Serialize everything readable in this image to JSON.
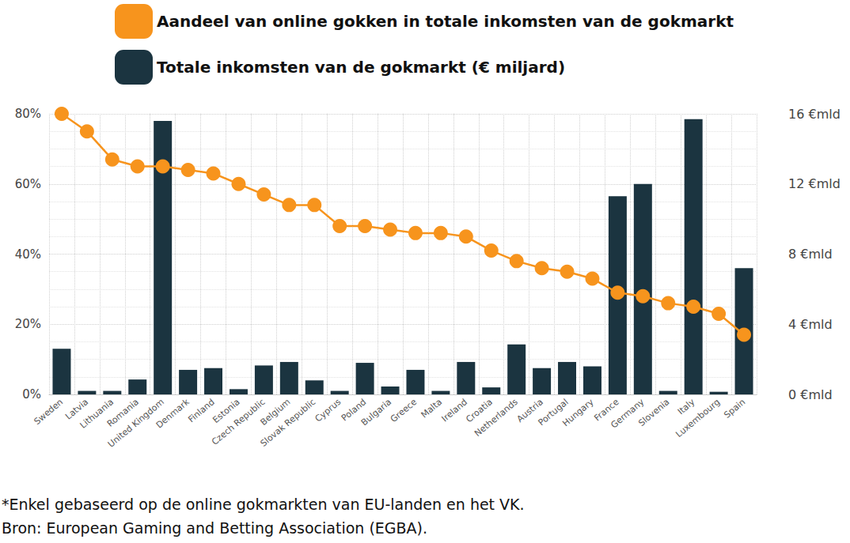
{
  "chart_data": {
    "type": "bar",
    "categories": [
      "Sweden",
      "Latvia",
      "Lithuania",
      "Romania",
      "United Kingdom",
      "Denmark",
      "Finland",
      "Estonia",
      "Czech Republic",
      "Belgium",
      "Slovak Republic",
      "Cyprus",
      "Poland",
      "Bulgaria",
      "Greece",
      "Malta",
      "Ireland",
      "Croatia",
      "Netherlands",
      "Austria",
      "Portugal",
      "Hungary",
      "France",
      "Germany",
      "Slovenia",
      "Italy",
      "Luxembourg",
      "Spain"
    ],
    "series": [
      {
        "name": "Aandeel van online gokken in totale inkomsten van de gokmarkt",
        "type": "line",
        "color": "#F7941D",
        "marker": "circle",
        "axis": "y",
        "values": [
          80,
          75,
          67,
          65,
          65,
          64,
          63,
          60,
          57,
          54,
          54,
          48,
          48,
          47,
          46,
          46,
          45,
          41,
          38,
          36,
          35,
          33,
          29,
          28,
          26,
          25,
          23,
          17
        ]
      },
      {
        "name": "Totale inkomsten van de gokmarkt (€ miljard)",
        "type": "bar",
        "color": "#1B3440",
        "axis": "y2",
        "values": [
          2.6,
          0.2,
          0.2,
          0.85,
          15.6,
          1.4,
          1.5,
          0.3,
          1.65,
          1.85,
          0.8,
          0.2,
          1.8,
          0.45,
          1.4,
          0.2,
          1.85,
          0.4,
          2.85,
          1.5,
          1.85,
          1.6,
          11.3,
          12.0,
          0.2,
          15.7,
          0.15,
          7.2
        ]
      }
    ],
    "ylim": [
      0,
      80
    ],
    "yticks": [
      {
        "value": 0,
        "label": "0%"
      },
      {
        "value": 20,
        "label": "20%"
      },
      {
        "value": 40,
        "label": "40%"
      },
      {
        "value": 60,
        "label": "60%"
      },
      {
        "value": 80,
        "label": "80%"
      }
    ],
    "y2lim": [
      0,
      16
    ],
    "y2ticks": [
      {
        "value": 0,
        "label": "0 €mld"
      },
      {
        "value": 4,
        "label": "4 €mld"
      },
      {
        "value": 8,
        "label": "8 €mld"
      },
      {
        "value": 12,
        "label": "12 €mld"
      },
      {
        "value": 16,
        "label": "16 €mld"
      }
    ],
    "grid": true,
    "legend": "top",
    "annotations": [
      "*Enkel gebaseerd op de online gokmarkten van EU-landen en het VK.",
      "Bron: European Gaming and Betting Association (EGBA)."
    ]
  }
}
